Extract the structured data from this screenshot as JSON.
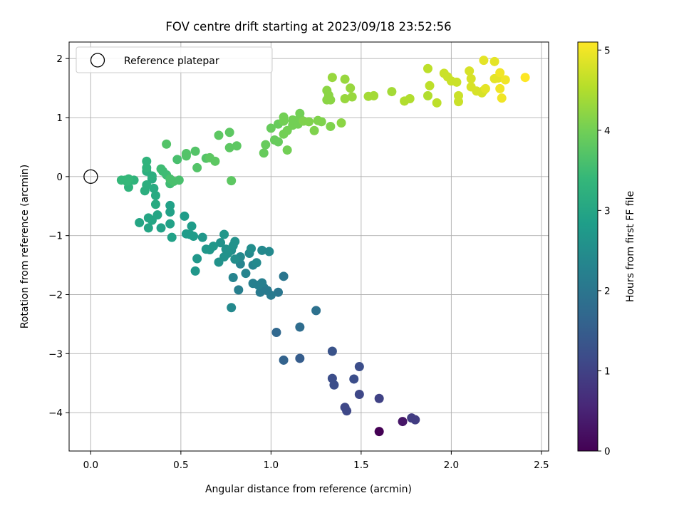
{
  "chart_data": {
    "type": "scatter",
    "title": "FOV centre drift starting at 2023/09/18 23:52:56",
    "xlabel": "Angular distance from reference (arcmin)",
    "ylabel": "Rotation from reference (arcmin)",
    "xlim": [
      -0.12,
      2.54
    ],
    "ylim": [
      -4.65,
      2.28
    ],
    "x_ticks": [
      0.0,
      0.5,
      1.0,
      1.5,
      2.0,
      2.5
    ],
    "x_tick_labels": [
      "0.0",
      "0.5",
      "1.0",
      "1.5",
      "2.0",
      "2.5"
    ],
    "y_ticks": [
      -4,
      -3,
      -2,
      -1,
      0,
      1,
      2
    ],
    "y_tick_labels": [
      "−4",
      "−3",
      "−2",
      "−1",
      "0",
      "1",
      "2"
    ],
    "grid": true,
    "legend": {
      "position": "top-left",
      "entries": [
        "Reference platepar"
      ]
    },
    "reference_point": {
      "x": 0.0,
      "y": 0.0
    },
    "colorbar": {
      "label": "Hours from first FF file",
      "colormap": "viridis",
      "range": [
        0,
        5.1
      ],
      "ticks": [
        0,
        1,
        2,
        3,
        4,
        5
      ],
      "tick_labels": [
        "0",
        "1",
        "2",
        "3",
        "4",
        "5"
      ]
    },
    "points": [
      [
        1.6,
        -4.32,
        0.0
      ],
      [
        1.73,
        -4.15,
        0.3
      ],
      [
        1.78,
        -4.09,
        0.9
      ],
      [
        1.8,
        -4.12,
        0.9
      ],
      [
        1.6,
        -3.76,
        1.0
      ],
      [
        1.42,
        -3.97,
        1.1
      ],
      [
        1.41,
        -3.91,
        1.1
      ],
      [
        1.49,
        -3.69,
        1.1
      ],
      [
        1.35,
        -3.53,
        1.2
      ],
      [
        1.34,
        -3.42,
        1.2
      ],
      [
        1.46,
        -3.43,
        1.2
      ],
      [
        1.49,
        -3.22,
        1.2
      ],
      [
        1.34,
        -2.96,
        1.3
      ],
      [
        1.16,
        -3.08,
        1.5
      ],
      [
        1.07,
        -3.11,
        1.6
      ],
      [
        1.03,
        -2.64,
        1.7
      ],
      [
        1.16,
        -2.55,
        1.8
      ],
      [
        1.25,
        -2.27,
        1.9
      ],
      [
        1.07,
        -1.69,
        2.0
      ],
      [
        1.04,
        -1.96,
        2.0
      ],
      [
        1.0,
        -2.01,
        2.1
      ],
      [
        0.98,
        -1.93,
        2.1
      ],
      [
        0.94,
        -1.96,
        2.1
      ],
      [
        0.96,
        -1.88,
        2.1
      ],
      [
        0.9,
        -1.81,
        2.2
      ],
      [
        0.95,
        -1.8,
        2.2
      ],
      [
        0.93,
        -1.84,
        2.2
      ],
      [
        0.82,
        -1.92,
        2.2
      ],
      [
        0.79,
        -1.71,
        2.3
      ],
      [
        0.86,
        -1.64,
        2.3
      ],
      [
        0.78,
        -2.22,
        2.4
      ],
      [
        0.9,
        -1.5,
        2.3
      ],
      [
        0.83,
        -1.48,
        2.3
      ],
      [
        0.92,
        -1.46,
        2.4
      ],
      [
        0.99,
        -1.27,
        2.4
      ],
      [
        0.95,
        -1.25,
        2.4
      ],
      [
        0.83,
        -1.36,
        2.4
      ],
      [
        0.88,
        -1.3,
        2.4
      ],
      [
        0.89,
        -1.22,
        2.5
      ],
      [
        0.8,
        -1.4,
        2.5
      ],
      [
        0.78,
        -1.25,
        2.5
      ],
      [
        0.8,
        -1.1,
        2.6
      ],
      [
        0.79,
        -1.17,
        2.6
      ],
      [
        0.76,
        -1.3,
        2.6
      ],
      [
        0.74,
        -1.36,
        2.6
      ],
      [
        0.75,
        -1.23,
        2.6
      ],
      [
        0.71,
        -1.45,
        2.6
      ],
      [
        0.72,
        -1.12,
        2.6
      ],
      [
        0.74,
        -0.98,
        2.7
      ],
      [
        0.66,
        -1.24,
        2.7
      ],
      [
        0.68,
        -1.18,
        2.7
      ],
      [
        0.64,
        -1.23,
        2.7
      ],
      [
        0.62,
        -1.03,
        2.7
      ],
      [
        0.59,
        -1.39,
        2.7
      ],
      [
        0.58,
        -1.6,
        2.7
      ],
      [
        0.57,
        -1.01,
        2.8
      ],
      [
        0.55,
        -0.98,
        2.8
      ],
      [
        0.53,
        -0.97,
        2.8
      ],
      [
        0.56,
        -0.84,
        2.8
      ],
      [
        0.52,
        -0.67,
        2.8
      ],
      [
        0.45,
        -1.03,
        2.9
      ],
      [
        0.44,
        -0.8,
        2.9
      ],
      [
        0.44,
        -0.6,
        2.9
      ],
      [
        0.44,
        -0.49,
        2.9
      ],
      [
        0.39,
        -0.87,
        2.9
      ],
      [
        0.34,
        -0.74,
        3.0
      ],
      [
        0.32,
        -0.87,
        3.0
      ],
      [
        0.32,
        -0.7,
        3.0
      ],
      [
        0.27,
        -0.78,
        3.0
      ],
      [
        0.37,
        -0.65,
        3.0
      ],
      [
        0.36,
        -0.47,
        3.1
      ],
      [
        0.36,
        -0.32,
        3.1
      ],
      [
        0.35,
        -0.2,
        3.1
      ],
      [
        0.34,
        -0.04,
        3.1
      ],
      [
        0.34,
        0.01,
        3.2
      ],
      [
        0.3,
        -0.24,
        3.2
      ],
      [
        0.31,
        -0.14,
        3.2
      ],
      [
        0.31,
        0.09,
        3.2
      ],
      [
        0.31,
        0.15,
        3.3
      ],
      [
        0.31,
        0.26,
        3.3
      ],
      [
        0.24,
        -0.06,
        3.3
      ],
      [
        0.21,
        -0.18,
        3.3
      ],
      [
        0.21,
        -0.04,
        3.4
      ],
      [
        0.19,
        -0.06,
        3.4
      ],
      [
        0.17,
        -0.06,
        3.4
      ],
      [
        0.2,
        -0.08,
        3.4
      ],
      [
        0.39,
        0.13,
        3.5
      ],
      [
        0.4,
        0.09,
        3.5
      ],
      [
        0.42,
        0.03,
        3.5
      ],
      [
        0.44,
        -0.12,
        3.5
      ],
      [
        0.46,
        -0.08,
        3.6
      ],
      [
        0.44,
        -0.04,
        3.6
      ],
      [
        0.49,
        -0.06,
        3.6
      ],
      [
        0.48,
        0.29,
        3.6
      ],
      [
        0.42,
        0.55,
        3.7
      ],
      [
        0.53,
        0.35,
        3.7
      ],
      [
        0.53,
        0.39,
        3.7
      ],
      [
        0.58,
        0.43,
        3.7
      ],
      [
        0.59,
        0.15,
        3.7
      ],
      [
        0.64,
        0.31,
        3.7
      ],
      [
        0.66,
        0.32,
        3.8
      ],
      [
        0.69,
        0.26,
        3.8
      ],
      [
        0.78,
        -0.07,
        3.8
      ],
      [
        0.71,
        0.7,
        3.8
      ],
      [
        0.77,
        0.75,
        3.8
      ],
      [
        0.77,
        0.49,
        3.8
      ],
      [
        0.81,
        0.52,
        3.8
      ],
      [
        0.96,
        0.4,
        3.9
      ],
      [
        0.97,
        0.54,
        3.9
      ],
      [
        1.0,
        0.82,
        3.9
      ],
      [
        1.02,
        0.62,
        3.9
      ],
      [
        1.04,
        0.89,
        3.9
      ],
      [
        1.04,
        0.59,
        3.9
      ],
      [
        1.07,
        0.94,
        4.0
      ],
      [
        1.07,
        1.01,
        4.0
      ],
      [
        1.09,
        0.78,
        4.0
      ],
      [
        1.09,
        0.45,
        4.0
      ],
      [
        1.07,
        0.72,
        4.0
      ],
      [
        1.12,
        0.87,
        4.0
      ],
      [
        1.12,
        0.96,
        4.0
      ],
      [
        1.15,
        0.89,
        4.0
      ],
      [
        1.16,
        0.99,
        4.0
      ],
      [
        1.16,
        1.07,
        4.0
      ],
      [
        1.18,
        0.94,
        4.1
      ],
      [
        1.21,
        0.93,
        4.1
      ],
      [
        1.24,
        0.78,
        4.1
      ],
      [
        1.26,
        0.95,
        4.1
      ],
      [
        1.28,
        0.93,
        4.1
      ],
      [
        1.33,
        0.85,
        4.1
      ],
      [
        1.39,
        0.91,
        4.2
      ],
      [
        1.31,
        1.3,
        4.2
      ],
      [
        1.31,
        1.46,
        4.2
      ],
      [
        1.33,
        1.3,
        4.2
      ],
      [
        1.32,
        1.38,
        4.2
      ],
      [
        1.34,
        1.68,
        4.3
      ],
      [
        1.41,
        1.32,
        4.3
      ],
      [
        1.41,
        1.65,
        4.3
      ],
      [
        1.44,
        1.5,
        4.3
      ],
      [
        1.45,
        1.35,
        4.3
      ],
      [
        1.54,
        1.36,
        4.4
      ],
      [
        1.57,
        1.37,
        4.4
      ],
      [
        1.67,
        1.44,
        4.4
      ],
      [
        1.74,
        1.28,
        4.5
      ],
      [
        1.77,
        1.32,
        4.5
      ],
      [
        1.87,
        1.37,
        4.5
      ],
      [
        1.87,
        1.83,
        4.6
      ],
      [
        1.88,
        1.54,
        4.6
      ],
      [
        1.92,
        1.25,
        4.6
      ],
      [
        1.96,
        1.75,
        4.7
      ],
      [
        1.98,
        1.69,
        4.7
      ],
      [
        2.0,
        1.62,
        4.7
      ],
      [
        2.03,
        1.6,
        4.7
      ],
      [
        2.04,
        1.37,
        4.7
      ],
      [
        2.04,
        1.27,
        4.7
      ],
      [
        2.1,
        1.79,
        4.8
      ],
      [
        2.11,
        1.66,
        4.8
      ],
      [
        2.11,
        1.52,
        4.8
      ],
      [
        2.14,
        1.45,
        4.8
      ],
      [
        2.17,
        1.42,
        4.8
      ],
      [
        2.18,
        1.46,
        4.8
      ],
      [
        2.19,
        1.49,
        4.9
      ],
      [
        2.18,
        1.97,
        4.9
      ],
      [
        2.24,
        1.95,
        4.9
      ],
      [
        2.24,
        1.66,
        4.9
      ],
      [
        2.26,
        1.67,
        4.9
      ],
      [
        2.27,
        1.76,
        5.0
      ],
      [
        2.27,
        1.49,
        5.0
      ],
      [
        2.28,
        1.33,
        5.0
      ],
      [
        2.3,
        1.64,
        5.0
      ],
      [
        2.41,
        1.68,
        5.1
      ]
    ]
  }
}
